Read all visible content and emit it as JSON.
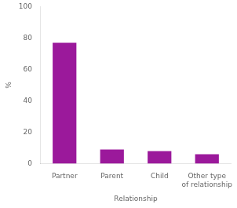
{
  "chart_data": {
    "type": "bar",
    "categories": [
      "Partner",
      "Parent",
      "Child",
      "Other type\nof relationship"
    ],
    "values": [
      77,
      9,
      8,
      6
    ],
    "color": "#9B199B",
    "xlabel": "Relationship",
    "ylabel": "%",
    "ylim": [
      0,
      100
    ],
    "yticks": [
      0,
      20,
      40,
      60,
      80,
      100
    ],
    "grid": false
  }
}
